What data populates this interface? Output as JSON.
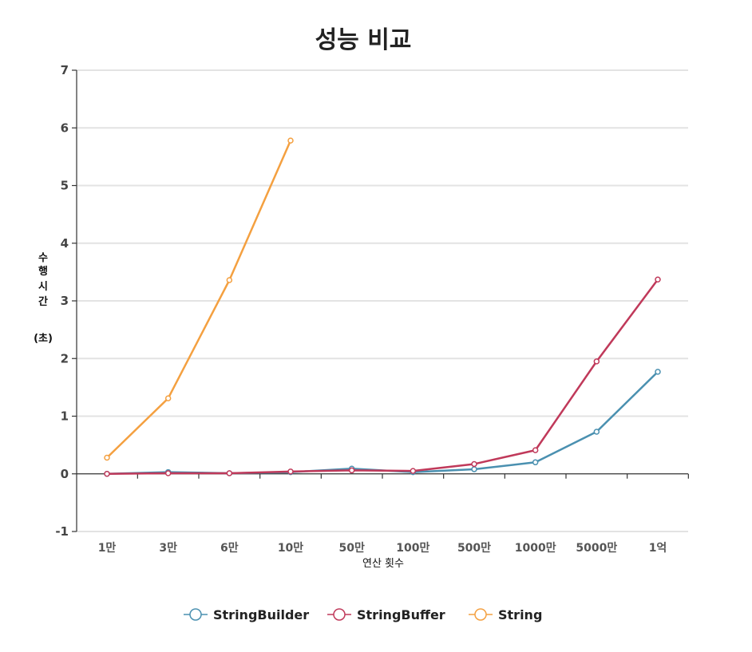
{
  "chart_data": {
    "type": "line",
    "title": "성능 비교",
    "xlabel": "연산 횟수",
    "ylabel_lines": [
      "수",
      "행",
      "시",
      "간",
      "",
      "(초)"
    ],
    "categories": [
      "1만",
      "3만",
      "6만",
      "10만",
      "50만",
      "100만",
      "500만",
      "1000만",
      "5000만",
      "1억"
    ],
    "ylim": [
      -1,
      7
    ],
    "yticks": [
      -1,
      0,
      1,
      2,
      3,
      4,
      5,
      6,
      7
    ],
    "grid": true,
    "legend_position": "bottom",
    "series": [
      {
        "name": "StringBuilder",
        "color": "#4a90b0",
        "values": [
          0.0,
          0.03,
          0.01,
          0.03,
          0.09,
          0.03,
          0.08,
          0.2,
          0.73,
          1.77
        ]
      },
      {
        "name": "StringBuffer",
        "color": "#c0395a",
        "values": [
          0.0,
          0.01,
          0.01,
          0.04,
          0.06,
          0.05,
          0.17,
          0.41,
          1.95,
          3.37
        ]
      },
      {
        "name": "String",
        "color": "#f4a040",
        "values": [
          0.28,
          1.31,
          3.36,
          5.78,
          null,
          null,
          null,
          null,
          null,
          null
        ]
      }
    ]
  }
}
